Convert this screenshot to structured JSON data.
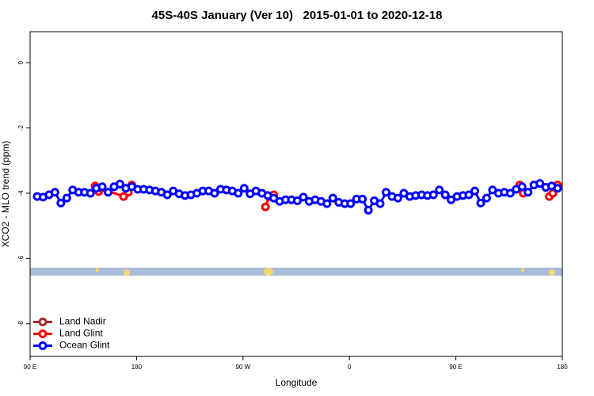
{
  "chart_data": {
    "type": "line",
    "title": "45S-40S January (Ver 10)   2015-01-01 to 2020-12-18",
    "xlabel": "Longitude",
    "ylabel": "XCO2 - MLO trend (ppm)",
    "xlim": [
      90,
      540
    ],
    "xticks": [
      {
        "value": 90,
        "label": "90 E"
      },
      {
        "value": 180,
        "label": "180"
      },
      {
        "value": 270,
        "label": "90 W"
      },
      {
        "value": 360,
        "label": "0"
      },
      {
        "value": 450,
        "label": "90 E"
      },
      {
        "value": 540,
        "label": "180"
      }
    ],
    "ylim": [
      -9,
      0.95
    ],
    "yticks": [
      0,
      -2,
      -4,
      -6,
      -8
    ],
    "legend": "bottomleft",
    "series": [
      {
        "name": "Land Nadir",
        "color": "#a52a2a",
        "x": [],
        "values": []
      },
      {
        "name": "Land Glint",
        "color": "#ff0000",
        "x": [
          145,
          148,
          150,
          169,
          173,
          176,
          null,
          289,
          292,
          296,
          null,
          504,
          507,
          null,
          529,
          532,
          536
        ],
        "values": [
          -3.78,
          -3.95,
          -3.85,
          -4.1,
          -3.97,
          -3.75,
          null,
          -4.42,
          -4.1,
          -4.05,
          null,
          -3.75,
          -4.0,
          null,
          -4.1,
          -4.0,
          -3.75
        ]
      },
      {
        "name": "Ocean Glint",
        "color": "#0000ff",
        "x": [
          96,
          101,
          106,
          111,
          116,
          121,
          126,
          131,
          136,
          141,
          146,
          151,
          156,
          161,
          166,
          171,
          176,
          181,
          186,
          191,
          196,
          201,
          206,
          211,
          216,
          221,
          226,
          231,
          236,
          241,
          246,
          251,
          256,
          261,
          266,
          271,
          276,
          281,
          286,
          291,
          296,
          301,
          306,
          311,
          316,
          321,
          326,
          331,
          336,
          341,
          346,
          351,
          356,
          361,
          366,
          371,
          376,
          381,
          386,
          391,
          396,
          401,
          406,
          411,
          416,
          421,
          426,
          431,
          436,
          441,
          446,
          451,
          456,
          461,
          466,
          471,
          476,
          481,
          486,
          491,
          496,
          501,
          506,
          511,
          516,
          521,
          526,
          531,
          536
        ],
        "values": [
          -4.1,
          -4.12,
          -4.05,
          -3.97,
          -4.3,
          -4.15,
          -3.9,
          -3.97,
          -3.97,
          -4.0,
          -3.85,
          -3.8,
          -3.97,
          -3.8,
          -3.72,
          -3.85,
          -3.8,
          -3.88,
          -3.88,
          -3.9,
          -3.93,
          -3.97,
          -4.05,
          -3.93,
          -4.02,
          -4.07,
          -4.05,
          -4.0,
          -3.93,
          -3.93,
          -4.0,
          -3.88,
          -3.9,
          -3.93,
          -4.0,
          -3.85,
          -4.02,
          -3.93,
          -4.0,
          -4.07,
          -4.15,
          -4.25,
          -4.2,
          -4.2,
          -4.23,
          -4.12,
          -4.25,
          -4.2,
          -4.25,
          -4.32,
          -4.15,
          -4.28,
          -4.32,
          -4.32,
          -4.18,
          -4.18,
          -4.52,
          -4.23,
          -4.32,
          -3.97,
          -4.1,
          -4.15,
          -4.0,
          -4.1,
          -4.07,
          -4.05,
          -4.07,
          -4.05,
          -3.9,
          -4.05,
          -4.2,
          -4.1,
          -4.07,
          -4.05,
          -3.93,
          -4.3,
          -4.15,
          -3.9,
          -4.0,
          -3.97,
          -4.0,
          -3.88,
          -3.8,
          -3.97,
          -3.75,
          -3.7,
          -3.82,
          -3.78,
          -3.85
        ]
      }
    ]
  }
}
